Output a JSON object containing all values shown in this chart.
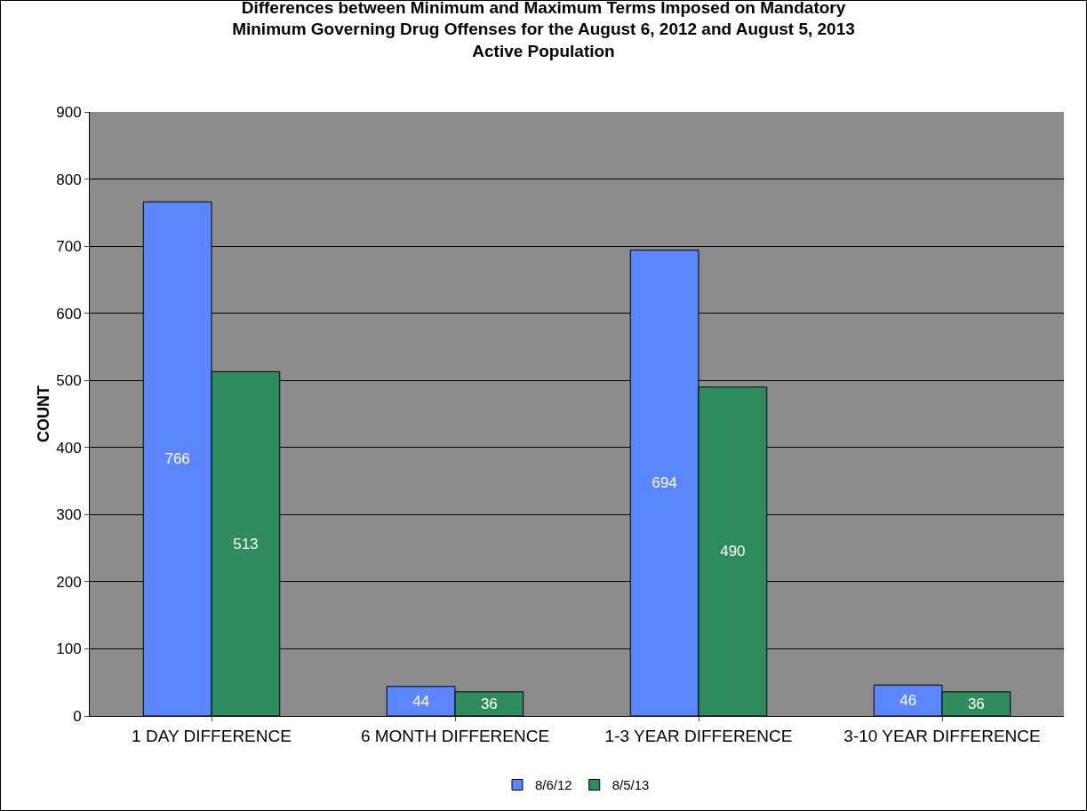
{
  "chart_data": {
    "type": "bar",
    "title": "Differences between Minimum and Maximum Terms Imposed on Mandatory\nMinimum Governing Drug Offenses for the August 6, 2012 and August 5, 2013\nActive Population",
    "ylabel": "COUNT",
    "categories": [
      "1 DAY DIFFERENCE",
      "6 MONTH DIFFERENCE",
      "1-3 YEAR DIFFERENCE",
      "3-10 YEAR DIFFERENCE"
    ],
    "series": [
      {
        "name": "8/6/12",
        "color": "#5b86ff",
        "values": [
          766,
          44,
          694,
          46
        ]
      },
      {
        "name": "8/5/13",
        "color": "#2e8c5c",
        "values": [
          513,
          36,
          490,
          36
        ]
      }
    ],
    "ylim": [
      0,
      900
    ],
    "yticks": [
      0,
      100,
      200,
      300,
      400,
      500,
      600,
      700,
      800,
      900
    ],
    "grid": "y",
    "legend": "bottom",
    "data_labels": true
  }
}
